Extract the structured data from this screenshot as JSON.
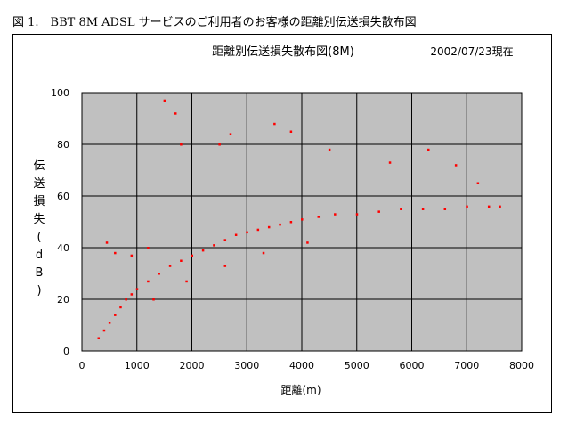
{
  "caption": "図 1.　BBT 8M ADSL サービスのご利用者のお客様の距離別伝送損失散布図",
  "chart_data": {
    "type": "scatter",
    "title": "距離別伝送損失散布図(8M)",
    "date_note": "2002/07/23現在",
    "xlabel": "距離(m)",
    "ylabel": "伝送損失(dB)",
    "xlim": [
      0,
      8000
    ],
    "ylim": [
      0,
      100
    ],
    "xticks": [
      "0",
      "1000",
      "2000",
      "3000",
      "4000",
      "5000",
      "6000",
      "7000",
      "8000"
    ],
    "yticks": [
      "0",
      "20",
      "40",
      "60",
      "80",
      "100"
    ],
    "grid": true,
    "plot_bg": "#c0c0c0",
    "point_color": "#ff0000",
    "series": [
      {
        "x": [
          300,
          400,
          500,
          600,
          700,
          800,
          900,
          1000,
          1200,
          1400,
          1600,
          1800,
          2000,
          2200,
          2400,
          2600,
          2800,
          3000,
          3200,
          3400,
          3600,
          3800,
          4000,
          4300,
          4600,
          5000,
          5400,
          5800,
          6200,
          6600,
          7000,
          7400,
          450,
          600,
          900,
          1200,
          1500,
          1700,
          1800,
          2500,
          2700,
          3500,
          3800,
          4500,
          5600,
          6300,
          6800,
          7200,
          7600,
          1300,
          1900,
          2600,
          3300,
          4100
        ],
        "y": [
          5,
          8,
          11,
          14,
          17,
          20,
          22,
          24,
          27,
          30,
          33,
          35,
          37,
          39,
          41,
          43,
          45,
          46,
          47,
          48,
          49,
          50,
          51,
          52,
          53,
          53,
          54,
          55,
          55,
          55,
          56,
          56,
          42,
          38,
          37,
          40,
          97,
          92,
          80,
          80,
          84,
          88,
          85,
          78,
          73,
          78,
          72,
          65,
          56,
          20,
          27,
          33,
          38,
          42
        ]
      }
    ]
  }
}
